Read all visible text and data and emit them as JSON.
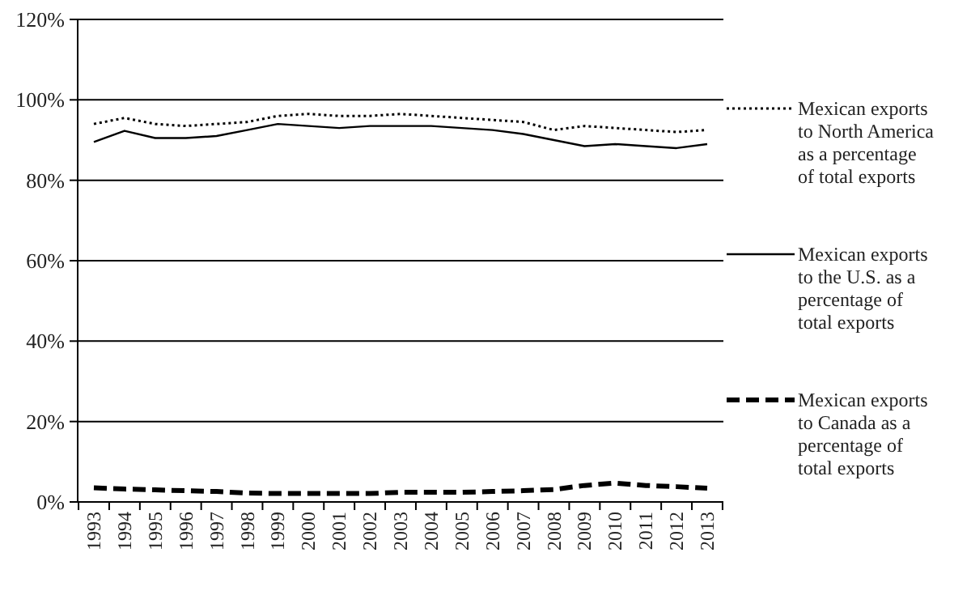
{
  "chart_data": {
    "type": "line",
    "categories": [
      "1993",
      "1994",
      "1995",
      "1996",
      "1997",
      "1998",
      "1999",
      "2000",
      "2001",
      "2002",
      "2003",
      "2004",
      "2005",
      "2006",
      "2007",
      "2008",
      "2009",
      "2010",
      "2011",
      "2012",
      "2013"
    ],
    "ylim": [
      0,
      120
    ],
    "yticks": [
      {
        "value": 0,
        "label": "0%"
      },
      {
        "value": 20,
        "label": "20%"
      },
      {
        "value": 40,
        "label": "40%"
      },
      {
        "value": 60,
        "label": "60%"
      },
      {
        "value": 80,
        "label": "80%"
      },
      {
        "value": 100,
        "label": "100%"
      },
      {
        "value": 120,
        "label": "120%"
      }
    ],
    "grid": "y",
    "legend": "right",
    "series": [
      {
        "name": "Mexican exports to North America as a percentage of total exports",
        "color": "#000000",
        "line_style": "dotted",
        "values": [
          94,
          95.5,
          94,
          93.5,
          94,
          94.5,
          96,
          96.5,
          96,
          96,
          96.5,
          96,
          95.5,
          95,
          94.5,
          92.5,
          93.5,
          93,
          92.5,
          92,
          92.5
        ]
      },
      {
        "name": "Mexican exports to the U.S. as a percentage of total exports",
        "color": "#000000",
        "line_style": "solid",
        "values": [
          89.5,
          92.3,
          90.5,
          90.5,
          91,
          92.5,
          94,
          93.5,
          93,
          93.5,
          93.5,
          93.5,
          93,
          92.5,
          91.5,
          90,
          88.5,
          89,
          88.5,
          88,
          89
        ]
      },
      {
        "name": "Mexican exports to Canada as a percentage of total exports",
        "color": "#000000",
        "line_style": "dashed",
        "values": [
          3.5,
          3.2,
          3,
          2.8,
          2.6,
          2.2,
          2.1,
          2.1,
          2.1,
          2.1,
          2.4,
          2.4,
          2.4,
          2.6,
          2.8,
          3.1,
          4.1,
          4.7,
          4.1,
          3.8,
          3.4
        ]
      }
    ]
  }
}
